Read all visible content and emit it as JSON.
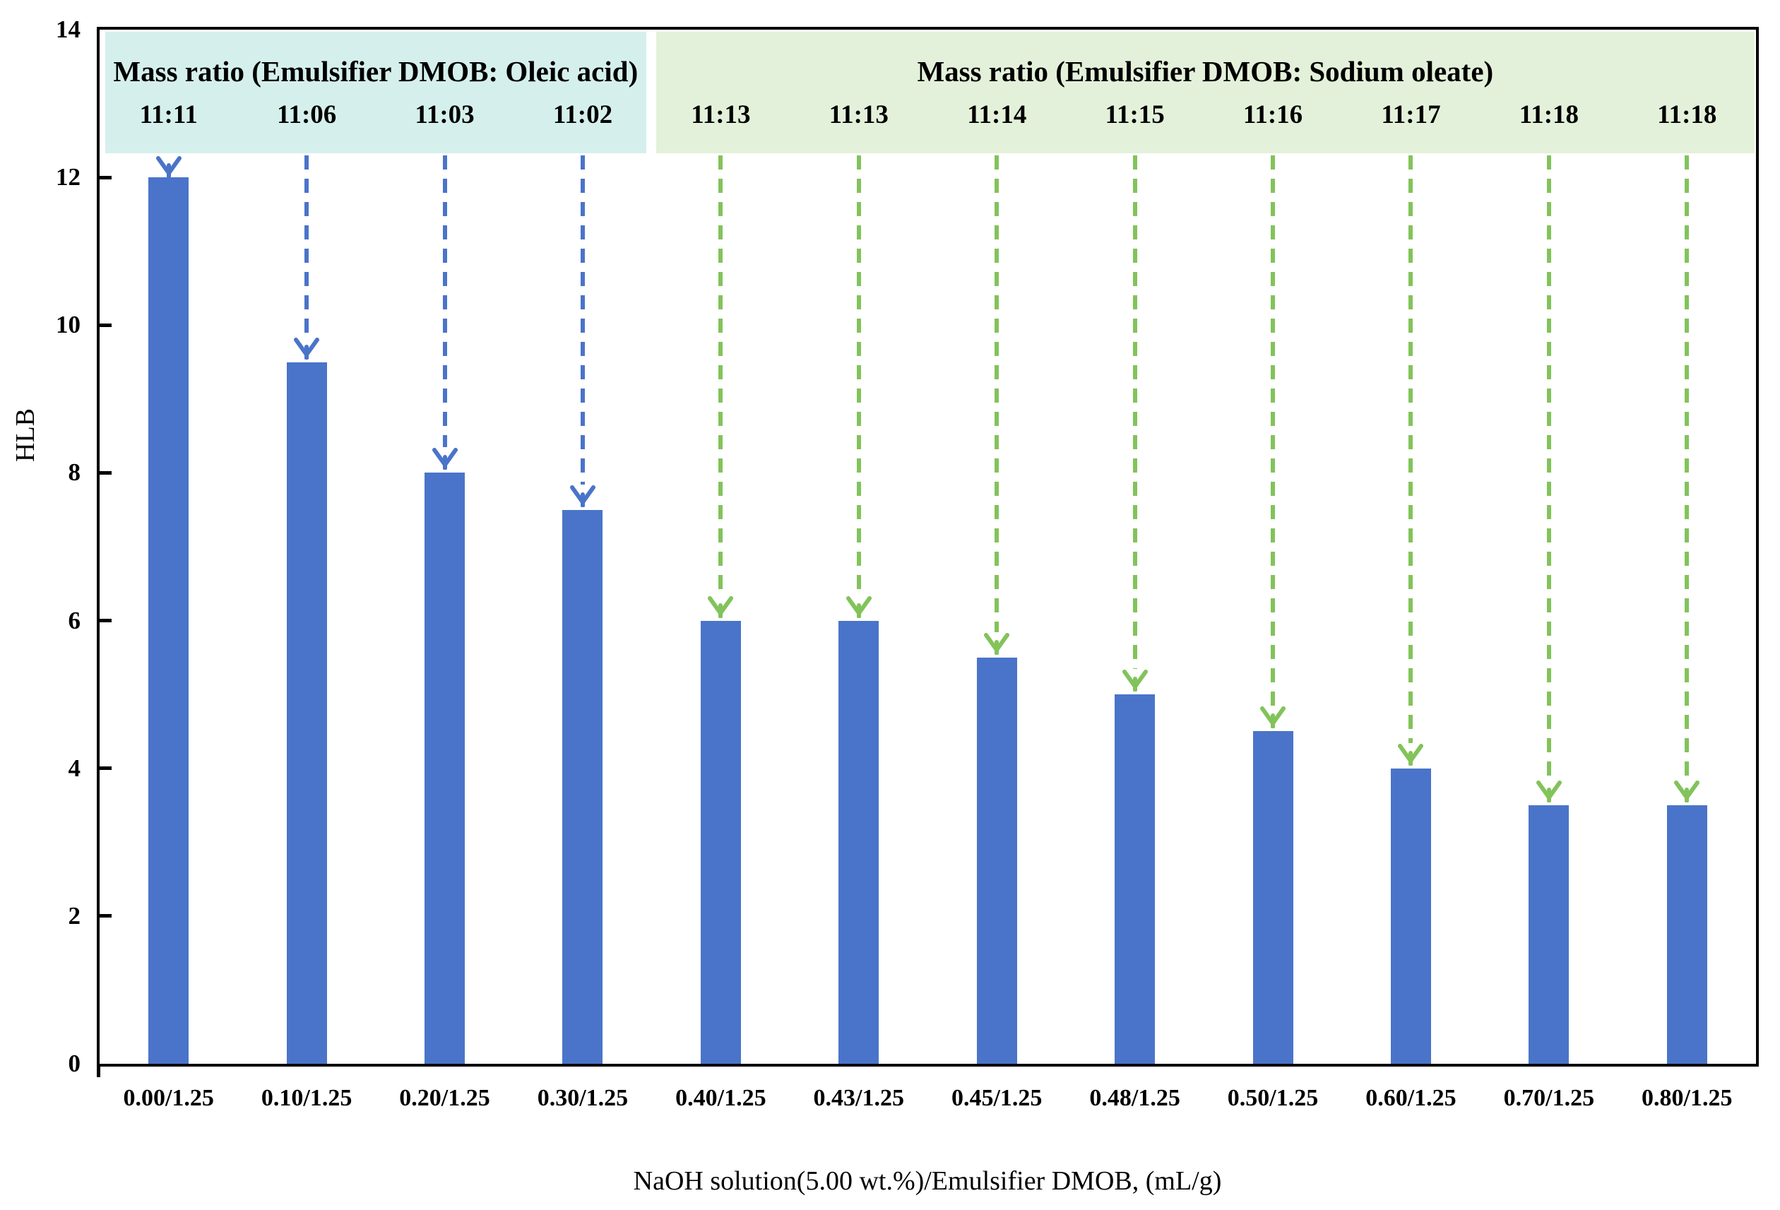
{
  "chart_data": {
    "type": "bar",
    "title": "",
    "xlabel": "NaOH solution(5.00 wt.%)/Emulsifier DMOB, (mL/g)",
    "ylabel": "HLB",
    "ylim": [
      0,
      14
    ],
    "yticks": [
      "0",
      "2",
      "4",
      "6",
      "8",
      "10",
      "12",
      "14"
    ],
    "grid": false,
    "legend": "none",
    "categories": [
      "0.00/1.25",
      "0.10/1.25",
      "0.20/1.25",
      "0.30/1.25",
      "0.40/1.25",
      "0.43/1.25",
      "0.45/1.25",
      "0.48/1.25",
      "0.50/1.25",
      "0.60/1.25",
      "0.70/1.25",
      "0.80/1.25"
    ],
    "values": [
      12,
      9.5,
      8,
      7.5,
      6,
      6,
      5.5,
      5,
      4.5,
      4,
      3.5,
      3.5
    ],
    "bar_color": "#4A74C9",
    "frame_color": "#000000",
    "groups": [
      {
        "label": "Mass ratio (Emulsifier DMOB: Oleic acid)",
        "ratios": [
          "11:11",
          "11:06",
          "11:03",
          "11:02"
        ],
        "start": 0,
        "end": 3,
        "bg_color": "#D5F0EC",
        "arrow_color": "#4A74C9"
      },
      {
        "label": "Mass ratio (Emulsifier DMOB: Sodium oleate)",
        "ratios": [
          "11:13",
          "11:13",
          "11:14",
          "11:15",
          "11:16",
          "11:17",
          "11:18",
          "11:18"
        ],
        "start": 4,
        "end": 11,
        "bg_color": "#E4F1DA",
        "arrow_color": "#82C35A"
      }
    ]
  }
}
